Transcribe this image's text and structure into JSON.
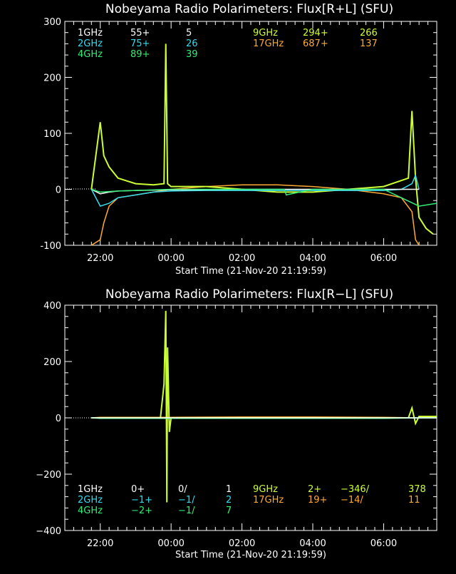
{
  "chart_data": [
    {
      "type": "line",
      "title": "Nobeyama Radio Polarimeters: Flux[R+L] (SFU)",
      "xlabel": "Start Time (21-Nov-20 21:19:59)",
      "ylabel": "",
      "x_range_hours": [
        21.0,
        31.5
      ],
      "xtick_hours": [
        22,
        24,
        26,
        28,
        30
      ],
      "xtick_labels": [
        "22:00",
        "00:00",
        "02:00",
        "04:00",
        "06:00"
      ],
      "ylim": [
        -100,
        300
      ],
      "yticks": [
        -100,
        0,
        100,
        200,
        300
      ],
      "ytick_labels": [
        "-100",
        "0",
        "100",
        "200",
        "300"
      ],
      "legend_rows": [
        [
          "1GHz",
          "55+",
          "5",
          "9GHz",
          "294+",
          "266"
        ],
        [
          "2GHz",
          "75+",
          "26",
          "17GHz",
          "687+",
          "137"
        ],
        [
          "4GHz",
          "89+",
          "39",
          "",
          "",
          ""
        ]
      ],
      "legend_colors": [
        [
          "#ffffff",
          "#ffffff",
          "#ffffff",
          "#ccff33",
          "#ccff33",
          "#ccff33"
        ],
        [
          "#33ddee",
          "#33ddee",
          "#33ddee",
          "#ffaa33",
          "#ffaa33",
          "#ffaa33"
        ],
        [
          "#33ee77",
          "#33ee77",
          "#33ee77",
          "",
          "",
          ""
        ]
      ],
      "series": [
        {
          "color": "#ffaa33",
          "x": [
            21.75,
            22.0,
            22.1,
            22.25,
            22.5,
            23.0,
            23.5,
            24.0,
            25.0,
            26.0,
            27.0,
            28.0,
            29.0,
            30.0,
            30.5,
            30.8,
            30.9,
            31.0
          ],
          "values": [
            -100,
            -90,
            -60,
            -30,
            -15,
            -10,
            -5,
            0,
            5,
            8,
            8,
            5,
            0,
            -8,
            -15,
            -40,
            -90,
            -100
          ]
        },
        {
          "color": "#ccff33",
          "x": [
            21.75,
            22.0,
            22.1,
            22.25,
            22.5,
            23.0,
            23.5,
            23.8,
            23.85,
            23.9,
            24.0,
            25.0,
            26.0,
            27.0,
            28.0,
            29.0,
            30.0,
            30.7,
            30.8,
            30.9,
            31.0,
            31.2,
            31.4
          ],
          "values": [
            0,
            120,
            60,
            40,
            20,
            10,
            8,
            10,
            260,
            10,
            5,
            5,
            0,
            -5,
            -5,
            0,
            5,
            20,
            140,
            20,
            -50,
            -70,
            -80
          ]
        },
        {
          "color": "#33ddee",
          "x": [
            21.75,
            22.0,
            22.25,
            22.5,
            23.0,
            23.5,
            24.0,
            25.0,
            26.0,
            27.0,
            28.0,
            29.0,
            30.0,
            30.5,
            30.8,
            30.9,
            31.0
          ],
          "values": [
            0,
            -30,
            -25,
            -15,
            -10,
            -5,
            -3,
            -2,
            -2,
            -2,
            -2,
            -2,
            -2,
            0,
            10,
            25,
            0
          ]
        },
        {
          "color": "#ffffff",
          "x": [
            21.75,
            22.0,
            22.25,
            22.5,
            23.0,
            24.0,
            26.0,
            28.0,
            30.0,
            31.0
          ],
          "values": [
            0,
            -8,
            -5,
            -3,
            -2,
            -1,
            0,
            0,
            0,
            0
          ]
        },
        {
          "color": "#33ee77",
          "x": [
            21.75,
            22.0,
            22.5,
            23.0,
            24.0,
            26.0,
            27.2,
            27.25,
            28.0,
            30.0,
            31.0,
            31.5
          ],
          "values": [
            0,
            -5,
            -3,
            -2,
            0,
            0,
            0,
            -10,
            0,
            0,
            -30,
            -25
          ]
        }
      ]
    },
    {
      "type": "line",
      "title": "Nobeyama Radio Polarimeters: Flux[R−L] (SFU)",
      "xlabel": "Start Time (21-Nov-20 21:19:59)",
      "ylabel": "",
      "x_range_hours": [
        21.0,
        31.5
      ],
      "xtick_hours": [
        22,
        24,
        26,
        28,
        30
      ],
      "xtick_labels": [
        "22:00",
        "00:00",
        "02:00",
        "04:00",
        "06:00"
      ],
      "ylim": [
        -400,
        400
      ],
      "yticks": [
        -400,
        -200,
        0,
        200,
        400
      ],
      "ytick_labels": [
        "−400",
        "−200",
        "0",
        "200",
        "400"
      ],
      "legend_rows": [
        [
          "1GHz",
          "0+",
          "0/",
          "1",
          "9GHz",
          "2+",
          "−346/",
          "378"
        ],
        [
          "2GHz",
          "−1+",
          "−1/",
          "2",
          "17GHz",
          "19+",
          "−14/",
          "11"
        ],
        [
          "4GHz",
          "−2+",
          "−1/",
          "7",
          "",
          "",
          "",
          ""
        ]
      ],
      "legend_colors": [
        [
          "#ffffff",
          "#ffffff",
          "#ffffff",
          "#ffffff",
          "#ccff33",
          "#ccff33",
          "#ccff33",
          "#ccff33"
        ],
        [
          "#33ddee",
          "#33ddee",
          "#33ddee",
          "#33ddee",
          "#ffaa33",
          "#ffaa33",
          "#ffaa33",
          "#ffaa33"
        ],
        [
          "#33ee77",
          "#33ee77",
          "#33ee77",
          "#33ee77",
          "",
          "",
          "",
          ""
        ]
      ],
      "series": [
        {
          "color": "#ffaa33",
          "x": [
            21.75,
            22.0,
            24.0,
            26.0,
            28.0,
            30.0,
            31.0,
            31.5
          ],
          "values": [
            0,
            2,
            2,
            3,
            3,
            2,
            0,
            0
          ]
        },
        {
          "color": "#ccff33",
          "x": [
            21.75,
            22.0,
            23.7,
            23.8,
            23.85,
            23.88,
            23.9,
            23.95,
            24.0,
            26.0,
            28.0,
            30.0,
            30.7,
            30.8,
            30.9,
            31.0,
            31.5
          ],
          "values": [
            0,
            0,
            0,
            120,
            380,
            -300,
            250,
            -50,
            0,
            0,
            0,
            0,
            0,
            35,
            -20,
            5,
            5
          ]
        },
        {
          "color": "#33ddee",
          "x": [
            21.75,
            22.0,
            24.0,
            26.0,
            28.0,
            30.0,
            31.0,
            31.5
          ],
          "values": [
            0,
            -1,
            -1,
            -1,
            -1,
            -1,
            0,
            0
          ]
        },
        {
          "color": "#33ee77",
          "x": [
            21.75,
            22.0,
            24.0,
            26.0,
            28.0,
            30.0,
            31.0,
            31.5
          ],
          "values": [
            0,
            -2,
            -2,
            -2,
            -2,
            -2,
            0,
            0
          ]
        },
        {
          "color": "#ffffff",
          "x": [
            21.75,
            22.0,
            24.0,
            26.0,
            28.0,
            30.0,
            31.0,
            31.5
          ],
          "values": [
            0,
            0,
            0,
            0,
            0,
            0,
            0,
            0
          ]
        }
      ]
    }
  ]
}
